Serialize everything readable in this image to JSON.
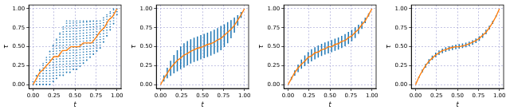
{
  "chart_data": [
    {
      "type": "scatter",
      "x_label": "t",
      "y_label": "τ",
      "grid": true,
      "xlim": [
        -0.05,
        1.05
      ],
      "ylim": [
        -0.05,
        1.05
      ],
      "xticks": [
        {
          "value": 0,
          "label": "0.00"
        },
        {
          "value": 0.25,
          "label": "0.25"
        },
        {
          "value": 0.5,
          "label": "0.50"
        },
        {
          "value": 0.75,
          "label": "0.75"
        },
        {
          "value": 1,
          "label": "1.00"
        }
      ],
      "yticks": [
        {
          "value": 0,
          "label": "0.00"
        },
        {
          "value": 0.25,
          "label": "0.25"
        },
        {
          "value": 0.5,
          "label": "0.50"
        },
        {
          "value": 0.75,
          "label": "0.75"
        },
        {
          "value": 1,
          "label": "1.00"
        }
      ],
      "series": [
        {
          "type": "scatter",
          "color": "#1f77b4",
          "line_style": "dotted",
          "x": [
            0,
            0.04,
            0.08,
            0.12,
            0.16,
            0.2,
            0.24,
            0.28,
            0.32,
            0.36,
            0.4,
            0.44,
            0.48,
            0.52,
            0.56,
            0.6,
            0.64,
            0.68,
            0.72,
            0.76,
            0.8,
            0.84,
            0.88,
            0.92,
            0.96,
            1
          ],
          "low": [
            0,
            0,
            0,
            0,
            0,
            0,
            0.04,
            0.08,
            0.12,
            0.12,
            0.16,
            0.16,
            0.2,
            0.2,
            0.24,
            0.28,
            0.32,
            0.36,
            0.4,
            0.44,
            0.48,
            0.56,
            0.64,
            0.72,
            0.8,
            0.92
          ],
          "high": [
            0.04,
            0.12,
            0.2,
            0.28,
            0.36,
            0.44,
            0.52,
            0.6,
            0.68,
            0.76,
            0.84,
            0.84,
            0.84,
            0.84,
            0.84,
            0.84,
            0.84,
            0.84,
            0.84,
            0.84,
            0.84,
            0.88,
            0.92,
            0.96,
            1,
            1
          ]
        },
        {
          "type": "line",
          "color": "#ff7f0e",
          "x": [
            0,
            0.04,
            0.08,
            0.12,
            0.16,
            0.2,
            0.25,
            0.3,
            0.35,
            0.4,
            0.45,
            0.55,
            0.6,
            0.7,
            0.75,
            0.8,
            0.85,
            0.9,
            0.95,
            1
          ],
          "values": [
            0,
            0.08,
            0.16,
            0.2,
            0.25,
            0.3,
            0.37,
            0.37,
            0.45,
            0.45,
            0.5,
            0.5,
            0.55,
            0.55,
            0.62,
            0.7,
            0.75,
            0.85,
            0.9,
            1
          ]
        }
      ]
    },
    {
      "type": "scatter",
      "x_label": "t",
      "y_label": "τ",
      "grid": true,
      "xlim": [
        -0.05,
        1.05
      ],
      "ylim": [
        -0.05,
        1.05
      ],
      "xticks": [
        {
          "value": 0,
          "label": "0.00"
        },
        {
          "value": 0.25,
          "label": "0.25"
        },
        {
          "value": 0.5,
          "label": "0.50"
        },
        {
          "value": 0.75,
          "label": "0.75"
        },
        {
          "value": 1,
          "label": "1.00"
        }
      ],
      "yticks": [
        {
          "value": 0,
          "label": "0.00"
        },
        {
          "value": 0.25,
          "label": "0.25"
        },
        {
          "value": 0.5,
          "label": "0.50"
        },
        {
          "value": 0.75,
          "label": "0.75"
        },
        {
          "value": 1,
          "label": "1.00"
        }
      ],
      "series": [
        {
          "type": "scatter",
          "color": "#1f77b4",
          "line_style": "solid",
          "x": [
            0,
            0.04,
            0.08,
            0.12,
            0.16,
            0.2,
            0.24,
            0.28,
            0.32,
            0.36,
            0.4,
            0.44,
            0.48,
            0.52,
            0.56,
            0.6,
            0.64,
            0.68,
            0.72,
            0.76,
            0.8,
            0.84,
            0.88,
            0.92,
            0.96,
            1
          ],
          "low": [
            0,
            0.042,
            0.084,
            0.116,
            0.15,
            0.175,
            0.204,
            0.226,
            0.254,
            0.277,
            0.298,
            0.315,
            0.332,
            0.348,
            0.365,
            0.382,
            0.403,
            0.426,
            0.454,
            0.496,
            0.545,
            0.61,
            0.684,
            0.776,
            0.878,
            1
          ],
          "high": [
            0,
            0.122,
            0.224,
            0.316,
            0.39,
            0.455,
            0.504,
            0.546,
            0.574,
            0.597,
            0.618,
            0.635,
            0.652,
            0.668,
            0.685,
            0.702,
            0.723,
            0.746,
            0.774,
            0.796,
            0.825,
            0.85,
            0.884,
            0.916,
            0.958,
            1
          ]
        },
        {
          "type": "line",
          "color": "#ff7f0e",
          "x": [
            0,
            0.04,
            0.08,
            0.12,
            0.16,
            0.2,
            0.24,
            0.28,
            0.32,
            0.36,
            0.4,
            0.44,
            0.48,
            0.52,
            0.56,
            0.6,
            0.64,
            0.68,
            0.72,
            0.76,
            0.8,
            0.84,
            0.88,
            0.92,
            0.96,
            1
          ],
          "values": [
            0,
            0.08,
            0.15,
            0.22,
            0.27,
            0.32,
            0.35,
            0.39,
            0.41,
            0.44,
            0.46,
            0.48,
            0.49,
            0.51,
            0.53,
            0.54,
            0.56,
            0.59,
            0.61,
            0.65,
            0.69,
            0.73,
            0.78,
            0.85,
            0.92,
            1
          ]
        }
      ]
    },
    {
      "type": "scatter",
      "x_label": "t",
      "y_label": "τ",
      "grid": true,
      "xlim": [
        -0.05,
        1.05
      ],
      "ylim": [
        -0.05,
        1.05
      ],
      "xticks": [
        {
          "value": 0,
          "label": "0.00"
        },
        {
          "value": 0.25,
          "label": "0.25"
        },
        {
          "value": 0.5,
          "label": "0.50"
        },
        {
          "value": 0.75,
          "label": "0.75"
        },
        {
          "value": 1,
          "label": "1.00"
        }
      ],
      "yticks": [
        {
          "value": 0,
          "label": "0.00"
        },
        {
          "value": 0.25,
          "label": "0.25"
        },
        {
          "value": 0.5,
          "label": "0.50"
        },
        {
          "value": 0.75,
          "label": "0.75"
        },
        {
          "value": 1,
          "label": "1.00"
        }
      ],
      "series": [
        {
          "type": "scatter",
          "color": "#1f77b4",
          "line_style": "solid",
          "x": [
            0,
            0.04,
            0.08,
            0.12,
            0.16,
            0.2,
            0.24,
            0.28,
            0.32,
            0.36,
            0.4,
            0.44,
            0.48,
            0.52,
            0.56,
            0.6,
            0.64,
            0.68,
            0.72,
            0.76,
            0.8,
            0.84,
            0.88,
            0.92,
            0.96,
            1
          ],
          "low": [
            0,
            0.062,
            0.119,
            0.166,
            0.21,
            0.245,
            0.279,
            0.306,
            0.334,
            0.357,
            0.378,
            0.395,
            0.412,
            0.428,
            0.445,
            0.462,
            0.483,
            0.506,
            0.534,
            0.571,
            0.615,
            0.67,
            0.734,
            0.811,
            0.898,
            1
          ],
          "high": [
            0,
            0.102,
            0.189,
            0.266,
            0.33,
            0.385,
            0.429,
            0.466,
            0.494,
            0.517,
            0.538,
            0.555,
            0.572,
            0.588,
            0.605,
            0.622,
            0.643,
            0.666,
            0.694,
            0.721,
            0.755,
            0.79,
            0.834,
            0.881,
            0.938,
            1
          ]
        },
        {
          "type": "line",
          "color": "#ff7f0e",
          "x": [
            0,
            0.04,
            0.08,
            0.12,
            0.16,
            0.2,
            0.24,
            0.28,
            0.32,
            0.36,
            0.4,
            0.44,
            0.48,
            0.52,
            0.56,
            0.6,
            0.64,
            0.68,
            0.72,
            0.76,
            0.8,
            0.84,
            0.88,
            0.92,
            0.96,
            1
          ],
          "values": [
            0,
            0.08,
            0.16,
            0.22,
            0.27,
            0.31,
            0.36,
            0.38,
            0.42,
            0.43,
            0.46,
            0.47,
            0.5,
            0.5,
            0.53,
            0.54,
            0.57,
            0.58,
            0.62,
            0.64,
            0.69,
            0.73,
            0.79,
            0.84,
            0.92,
            1
          ]
        }
      ]
    },
    {
      "type": "scatter",
      "x_label": "t",
      "y_label": "τ",
      "grid": true,
      "xlim": [
        -0.05,
        1.05
      ],
      "ylim": [
        -0.05,
        1.05
      ],
      "xticks": [
        {
          "value": 0,
          "label": "0.00"
        },
        {
          "value": 0.25,
          "label": "0.25"
        },
        {
          "value": 0.5,
          "label": "0.50"
        },
        {
          "value": 0.75,
          "label": "0.75"
        },
        {
          "value": 1,
          "label": "1.00"
        }
      ],
      "yticks": [
        {
          "value": 0,
          "label": "0.00"
        },
        {
          "value": 0.25,
          "label": "0.25"
        },
        {
          "value": 0.5,
          "label": "0.50"
        },
        {
          "value": 0.75,
          "label": "0.75"
        },
        {
          "value": 1,
          "label": "1.00"
        }
      ],
      "series": [
        {
          "type": "scatter",
          "color": "#1f77b4",
          "line_style": "solid",
          "x": [
            0,
            0.04,
            0.08,
            0.12,
            0.16,
            0.2,
            0.24,
            0.28,
            0.32,
            0.36,
            0.4,
            0.44,
            0.48,
            0.52,
            0.56,
            0.6,
            0.64,
            0.68,
            0.72,
            0.76,
            0.8,
            0.84,
            0.88,
            0.92,
            0.96,
            1
          ],
          "low": [
            0,
            0.087,
            0.159,
            0.223,
            0.276,
            0.324,
            0.362,
            0.392,
            0.415,
            0.433,
            0.447,
            0.457,
            0.466,
            0.474,
            0.483,
            0.493,
            0.507,
            0.525,
            0.548,
            0.578,
            0.616,
            0.664,
            0.727,
            0.801,
            0.893,
            1
          ],
          "high": [
            0,
            0.107,
            0.199,
            0.273,
            0.336,
            0.384,
            0.422,
            0.452,
            0.475,
            0.493,
            0.507,
            0.517,
            0.526,
            0.534,
            0.543,
            0.553,
            0.567,
            0.585,
            0.608,
            0.638,
            0.676,
            0.724,
            0.777,
            0.841,
            0.913,
            1
          ]
        },
        {
          "type": "line",
          "color": "#ff7f0e",
          "x": [
            0,
            0.04,
            0.08,
            0.12,
            0.16,
            0.2,
            0.24,
            0.28,
            0.32,
            0.36,
            0.4,
            0.44,
            0.48,
            0.52,
            0.56,
            0.6,
            0.64,
            0.68,
            0.72,
            0.76,
            0.8,
            0.84,
            0.88,
            0.92,
            0.96,
            1
          ],
          "values": [
            0,
            0.1,
            0.18,
            0.25,
            0.31,
            0.35,
            0.39,
            0.42,
            0.45,
            0.46,
            0.48,
            0.49,
            0.5,
            0.5,
            0.51,
            0.52,
            0.54,
            0.56,
            0.58,
            0.61,
            0.65,
            0.69,
            0.75,
            0.82,
            0.9,
            1
          ]
        }
      ]
    }
  ]
}
